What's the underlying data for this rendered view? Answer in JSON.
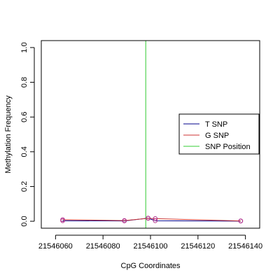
{
  "chart_data": {
    "type": "line",
    "xlabel": "CpG Coordinates",
    "ylabel": "Methylation Frequency",
    "xlim": [
      21546054,
      21546146
    ],
    "ylim": [
      -0.04,
      1.04
    ],
    "xticks": [
      21546060,
      21546080,
      21546100,
      21546120,
      21546140
    ],
    "yticks": [
      0.0,
      0.2,
      0.4,
      0.6,
      0.8,
      1.0
    ],
    "ytick_labels": [
      "0.0",
      "0.2",
      "0.4",
      "0.6",
      "0.8",
      "1.0"
    ],
    "snp_position": 21546098,
    "series": [
      {
        "name": "T SNP",
        "color": "#00008B",
        "x": [
          21546063,
          21546089,
          21546099,
          21546102,
          21546138
        ],
        "y": [
          0.003,
          0.002,
          0.018,
          0.003,
          0.001
        ]
      },
      {
        "name": "G SNP",
        "color": "#CD3333",
        "x": [
          21546063,
          21546089,
          21546099,
          21546102,
          21546138
        ],
        "y": [
          0.009,
          0.004,
          0.017,
          0.015,
          0.002
        ]
      }
    ],
    "legend": {
      "position": "right",
      "entries": [
        {
          "label": "T SNP",
          "color": "#00008B"
        },
        {
          "label": "G SNP",
          "color": "#CD3333"
        },
        {
          "label": "SNP Position",
          "color": "#33CC33"
        }
      ]
    },
    "marker_color": "#B0308C"
  }
}
